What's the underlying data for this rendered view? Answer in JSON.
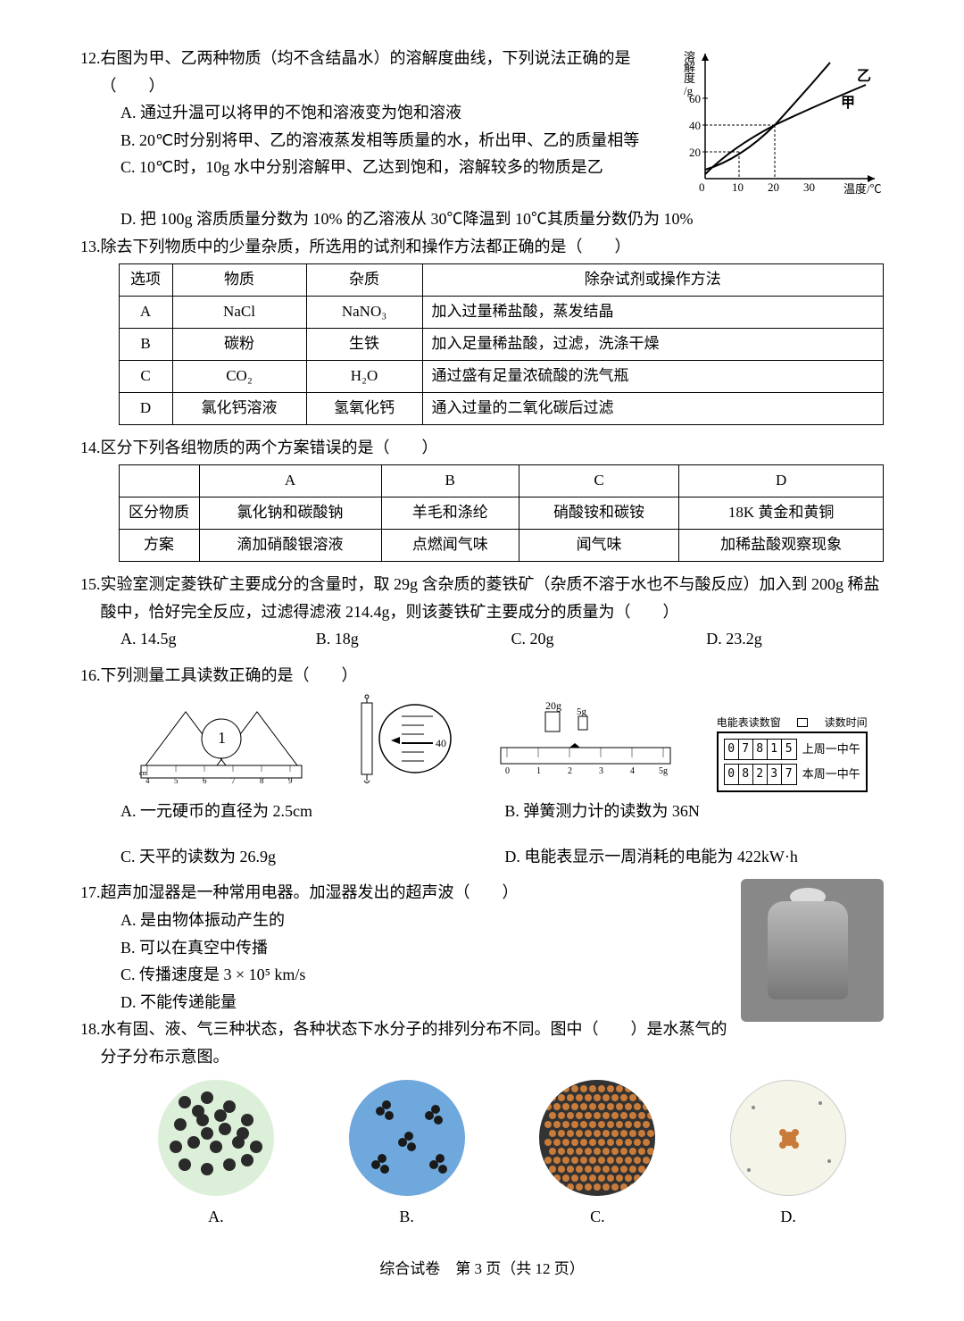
{
  "q12": {
    "num": "12.",
    "stem1": "右图为甲、乙两种物质（均不含结晶水）的溶解度曲线，下列说法正确的是（　　）",
    "optA": "A. 通过升温可以将甲的不饱和溶液变为饱和溶液",
    "optB": "B. 20℃时分别将甲、乙的溶液蒸发相等质量的水，析出甲、乙的质量相等",
    "optC": "C. 10℃时，10g 水中分别溶解甲、乙达到饱和，溶解较多的物质是乙",
    "optD": "D. 把 100g 溶质质量分数为 10% 的乙溶液从 30℃降温到 10℃其质量分数仍为 10%",
    "chart": {
      "ylabel": "溶解度/g",
      "xlabel": "温度/℃",
      "yticks": [
        20,
        40,
        60
      ],
      "xticks": [
        10,
        20,
        30
      ],
      "series_jia": {
        "label": "甲",
        "points": [
          [
            0,
            10
          ],
          [
            10,
            20
          ],
          [
            20,
            40
          ],
          [
            30,
            60
          ],
          [
            35,
            75
          ]
        ]
      },
      "series_yi": {
        "label": "乙",
        "points": [
          [
            0,
            5
          ],
          [
            10,
            25
          ],
          [
            20,
            40
          ],
          [
            30,
            52
          ],
          [
            40,
            62
          ]
        ]
      },
      "axis_color": "#000",
      "grid_dash": "3,2"
    }
  },
  "q13": {
    "num": "13.",
    "stem": "除去下列物质中的少量杂质，所选用的试剂和操作方法都正确的是（　　）",
    "headers": [
      "选项",
      "物质",
      "杂质",
      "除杂试剂或操作方法"
    ],
    "rows": [
      [
        "A",
        "NaCl",
        "NaNO₃",
        "加入过量稀盐酸，蒸发结晶"
      ],
      [
        "B",
        "碳粉",
        "生铁",
        "加入足量稀盐酸，过滤，洗涤干燥"
      ],
      [
        "C",
        "CO₂",
        "H₂O",
        "通过盛有足量浓硫酸的洗气瓶"
      ],
      [
        "D",
        "氯化钙溶液",
        "氢氧化钙",
        "通入过量的二氧化碳后过滤"
      ]
    ]
  },
  "q14": {
    "num": "14.",
    "stem": "区分下列各组物质的两个方案错误的是（　　）",
    "headers": [
      "",
      "A",
      "B",
      "C",
      "D"
    ],
    "rows": [
      [
        "区分物质",
        "氯化钠和碳酸钠",
        "羊毛和涤纶",
        "硝酸铵和碳铵",
        "18K 黄金和黄铜"
      ],
      [
        "方案",
        "滴加硝酸银溶液",
        "点燃闻气味",
        "闻气味",
        "加稀盐酸观察现象"
      ]
    ]
  },
  "q15": {
    "num": "15.",
    "stem": "实验室测定菱铁矿主要成分的含量时，取 29g 含杂质的菱铁矿（杂质不溶于水也不与酸反应）加入到 200g 稀盐酸中，恰好完全反应，过滤得滤液 214.4g，则该菱铁矿主要成分的质量为（　　）",
    "optA": "A. 14.5g",
    "optB": "B. 18g",
    "optC": "C. 20g",
    "optD": "D. 23.2g"
  },
  "q16": {
    "num": "16.",
    "stem": "下列测量工具读数正确的是（　　）",
    "optA": "A. 一元硬币的直径为 2.5cm",
    "optB": "B. 弹簧测力计的读数为 36N",
    "optC": "C. 天平的读数为 26.9g",
    "optD": "D. 电能表显示一周消耗的电能为 422kW·h",
    "ruler": {
      "ticks": [
        "4",
        "5",
        "6",
        "7",
        "8",
        "9"
      ],
      "unit": "cm",
      "coin": "1"
    },
    "spring": {
      "mark": "40"
    },
    "balance": {
      "main": "20g",
      "rider": "5g",
      "scale": [
        "0",
        "1",
        "2",
        "3",
        "4",
        "5g"
      ]
    },
    "meter": {
      "title_left": "电能表读数窗",
      "title_right": "读数时间",
      "row1_digits": [
        "0",
        "7",
        "8",
        "1",
        "5"
      ],
      "row1_label": "上周一中午",
      "row2_digits": [
        "0",
        "8",
        "2",
        "3",
        "7"
      ],
      "row2_label": "本周一中午"
    }
  },
  "q17": {
    "num": "17.",
    "stem": "超声加湿器是一种常用电器。加湿器发出的超声波（　　）",
    "optA": "A. 是由物体振动产生的",
    "optB": "B. 可以在真空中传播",
    "optC": "C. 传播速度是 3 × 10⁵ km/s",
    "optD": "D. 不能传递能量"
  },
  "q18": {
    "num": "18.",
    "stem": "水有固、液、气三种状态，各种状态下水分子的排列分布不同。图中（　　）是水蒸气的分子分布示意图。",
    "labels": [
      "A.",
      "B.",
      "C.",
      "D."
    ],
    "figs": {
      "A": {
        "bg": "#dcefd8",
        "type": "random-dense"
      },
      "B": {
        "bg": "#6fa8dc",
        "type": "clusters"
      },
      "C": {
        "bg": "#333333",
        "type": "lattice"
      },
      "D": {
        "bg": "#f4f4e8",
        "type": "sparse"
      }
    }
  },
  "footer": "综合试卷　第 3 页（共 12 页）"
}
